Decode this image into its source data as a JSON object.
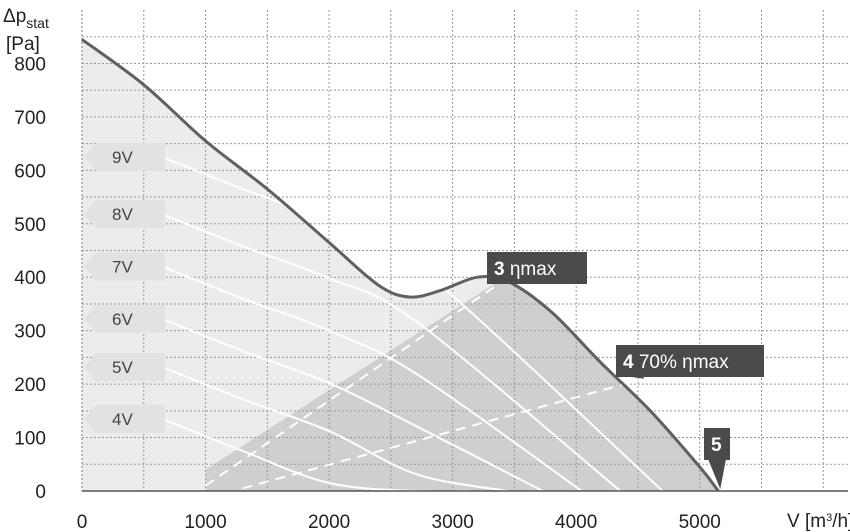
{
  "chart_data": {
    "type": "line",
    "y_axis_title": {
      "symbol": "Δp",
      "subscript": "stat",
      "unit": "[Pa]"
    },
    "x_axis_title": {
      "prefix": "V [m",
      "sup": "3",
      "suffix": "/h]"
    },
    "xlim": [
      0,
      6200
    ],
    "ylim": [
      0,
      900
    ],
    "x_ticks": [
      "0",
      "1000",
      "2000",
      "3000",
      "4000",
      "5000"
    ],
    "y_ticks": [
      "800",
      "700",
      "600",
      "500",
      "400",
      "300",
      "200",
      "100",
      "0"
    ],
    "max_curve": [
      [
        0,
        845
      ],
      [
        500,
        760
      ],
      [
        1000,
        655
      ],
      [
        1500,
        565
      ],
      [
        2000,
        465
      ],
      [
        2400,
        385
      ],
      [
        2650,
        363
      ],
      [
        2900,
        375
      ],
      [
        3200,
        400
      ],
      [
        3450,
        392
      ],
      [
        3800,
        335
      ],
      [
        4200,
        240
      ],
      [
        4600,
        150
      ],
      [
        5000,
        45
      ],
      [
        5150,
        0
      ]
    ],
    "voltage_labels": [
      "9V",
      "8V",
      "7V",
      "6V",
      "5V",
      "4V"
    ],
    "voltage_label_values": [
      625,
      518,
      420,
      322,
      232,
      135
    ],
    "callouts": [
      {
        "number": "3",
        "text": "ηmax",
        "point": [
          3420,
          400
        ]
      },
      {
        "number": "4",
        "text": "70% ηmax",
        "point": [
          4550,
          210
        ]
      },
      {
        "number": "5",
        "text": "",
        "point": [
          5150,
          0
        ]
      }
    ],
    "colors": {
      "max_curve": "#606060",
      "light_region": "#ececec",
      "dark_region": "#cfcfcf",
      "callout": "#4a4a4a",
      "grid": "#999999"
    },
    "grid": true
  }
}
